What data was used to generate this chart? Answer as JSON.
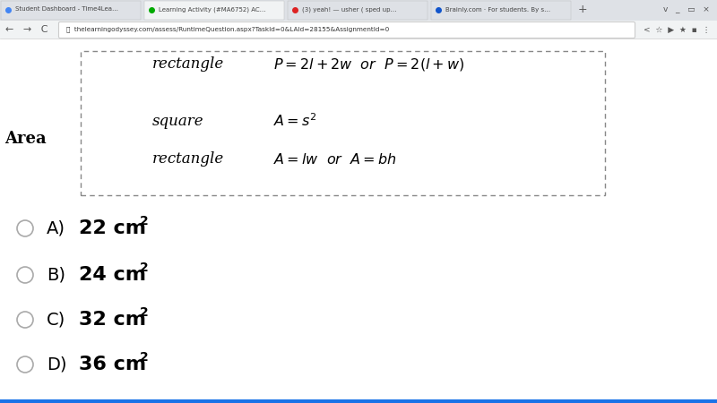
{
  "bg_color": "#f1f3f4",
  "content_bg": "#ffffff",
  "browser_tab_bg": "#dee1e6",
  "active_tab_bg": "#f1f3f4",
  "nav_bar_bg": "#f1f3f4",
  "url_bar_bg": "#ffffff",
  "text_color": "#000000",
  "tab_text_color": "#444444",
  "url_text_color": "#333333",
  "nav_icon_color": "#555555",
  "formula_box_border": "#888888",
  "formula_box_bg": "#ffffff",
  "area_label": "Area",
  "formula_row1_left": "rectangle",
  "formula_row2_left": "square",
  "formula_row3_left": "rectangle",
  "choices": [
    {
      "label": "A)",
      "value": "22 cm²"
    },
    {
      "label": "B)",
      "value": "24 cm²"
    },
    {
      "label": "C)",
      "value": "32 cm²"
    },
    {
      "label": "D)",
      "value": "36 cm²"
    }
  ],
  "circle_facecolor": "#ffffff",
  "circle_edgecolor": "#aaaaaa",
  "tab_texts": [
    "Student Dashboard - Time4Lea…",
    "Learning Activity (#MA6752) AC…",
    "(3) yeah! — usher ( sped up…",
    "Brainly.com · For students. By s…"
  ],
  "url_text": "thelearningodyssey.com/assess/RuntimeQuestion.aspx?TaskId=0&LAId=28155&AssignmentId=0",
  "bottom_bar_color": "#1a73e8",
  "bottom_bar_height": 4
}
